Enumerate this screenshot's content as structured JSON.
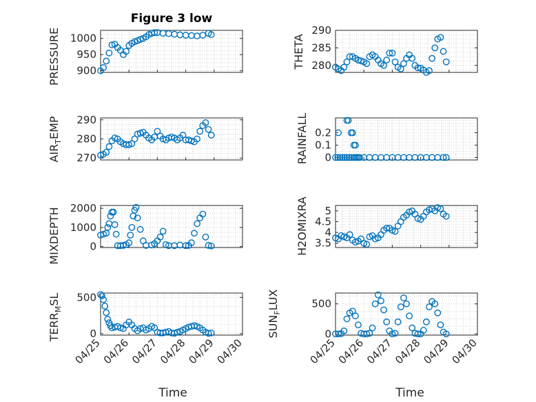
{
  "colors": {
    "marker": "#0072BD",
    "axis": "#262626",
    "grid": "#d0d0d0"
  },
  "chart_data": [
    {
      "type": "scatter",
      "title": "Figure 3 low",
      "ylabel": "PRESSURE",
      "xlabel": "",
      "ylim": [
        895,
        1025
      ],
      "yticks": [
        900,
        950,
        1000
      ],
      "ytick_labels": [
        "900",
        "950",
        "1000"
      ],
      "grid": true,
      "x_range": [
        "04/25",
        "04/29"
      ],
      "x": [
        0,
        0.1,
        0.2,
        0.3,
        0.4,
        0.5,
        0.6,
        0.7,
        0.8,
        0.9,
        1.0,
        1.1,
        1.2,
        1.3,
        1.4,
        1.5,
        1.6,
        1.7,
        1.8,
        1.9,
        2.0,
        2.2,
        2.4,
        2.6,
        2.8,
        3.0,
        3.2,
        3.4,
        3.6,
        3.8,
        3.9
      ],
      "y": [
        900,
        910,
        930,
        955,
        980,
        982,
        972,
        963,
        950,
        960,
        978,
        985,
        990,
        993,
        997,
        1000,
        1005,
        1012,
        1016,
        1018,
        1018,
        1016,
        1015,
        1013,
        1011,
        1010,
        1009,
        1008,
        1010,
        1016,
        1012
      ]
    },
    {
      "type": "scatter",
      "ylabel": "THETA",
      "xlabel": "",
      "ylim": [
        278,
        290
      ],
      "yticks": [
        280,
        285,
        290
      ],
      "ytick_labels": [
        "280",
        "285",
        "290"
      ],
      "grid": true,
      "x": [
        0,
        0.1,
        0.2,
        0.3,
        0.4,
        0.5,
        0.6,
        0.7,
        0.8,
        0.9,
        1.0,
        1.1,
        1.2,
        1.3,
        1.4,
        1.5,
        1.6,
        1.7,
        1.8,
        1.9,
        2.0,
        2.1,
        2.2,
        2.3,
        2.4,
        2.5,
        2.6,
        2.7,
        2.8,
        2.9,
        3.0,
        3.1,
        3.2,
        3.3,
        3.4,
        3.5,
        3.6,
        3.7,
        3.8,
        3.9
      ],
      "y": [
        279.5,
        279,
        278.5,
        279.5,
        281,
        282.5,
        282.5,
        282,
        281.5,
        281.3,
        281,
        280.5,
        282.5,
        283,
        282.5,
        281.5,
        280.5,
        280,
        281.5,
        283.5,
        283.5,
        281,
        279.5,
        279,
        280.5,
        282,
        283,
        282,
        280,
        279.3,
        279.2,
        278.7,
        278,
        278.5,
        282,
        285,
        287.5,
        288,
        284,
        281
      ]
    },
    {
      "type": "scatter",
      "ylabel": "AIR_TEMP",
      "xlabel": "",
      "ylim": [
        269,
        291
      ],
      "yticks": [
        270,
        280,
        290
      ],
      "ytick_labels": [
        "270",
        "280",
        "290"
      ],
      "grid": true,
      "x": [
        0,
        0.1,
        0.2,
        0.3,
        0.4,
        0.5,
        0.6,
        0.7,
        0.8,
        0.9,
        1.0,
        1.1,
        1.2,
        1.3,
        1.4,
        1.5,
        1.6,
        1.7,
        1.8,
        1.9,
        2.0,
        2.1,
        2.2,
        2.3,
        2.4,
        2.5,
        2.6,
        2.7,
        2.8,
        2.9,
        3.0,
        3.1,
        3.2,
        3.3,
        3.4,
        3.5,
        3.6,
        3.7,
        3.8,
        3.9
      ],
      "y": [
        271.5,
        272,
        273,
        276,
        279,
        280.5,
        280,
        278.5,
        277.5,
        277,
        277,
        277.5,
        280,
        282.5,
        283,
        283.5,
        282,
        280.5,
        279.5,
        281,
        284,
        281.5,
        280,
        279.5,
        280.5,
        281,
        280.5,
        279.5,
        280.5,
        282,
        279.5,
        279.5,
        279,
        278.5,
        280,
        284,
        287,
        288.5,
        285,
        282
      ]
    },
    {
      "type": "scatter",
      "ylabel": "RAINFALL",
      "xlabel": "",
      "ylim": [
        -0.02,
        0.32
      ],
      "yticks": [
        0,
        0.1,
        0.2
      ],
      "ytick_labels": [
        "0",
        "0.1",
        "0.2"
      ],
      "grid": true,
      "x": [
        0,
        0.08,
        0.16,
        0.24,
        0.32,
        0.4,
        0.48,
        0.56,
        0.64,
        0.7,
        0.75,
        0.8,
        0.1,
        0.4,
        0.45,
        0.55,
        0.6,
        0.65,
        0.7,
        0.85,
        1.0,
        1.2,
        1.4,
        1.6,
        1.8,
        2.0,
        2.2,
        2.4,
        2.6,
        2.8,
        3.0,
        3.2,
        3.4,
        3.6,
        3.8,
        3.9
      ],
      "y": [
        0,
        0,
        0,
        0,
        0,
        0,
        0,
        0,
        0,
        0,
        0,
        0,
        0.2,
        0.3,
        0.3,
        0.2,
        0.2,
        0.1,
        0.1,
        0,
        0,
        0,
        0,
        0,
        0,
        0,
        0,
        0,
        0,
        0,
        0,
        0,
        0,
        0,
        0,
        0
      ]
    },
    {
      "type": "scatter",
      "ylabel": "MIXDEPTH",
      "xlabel": "",
      "ylim": [
        -50,
        2150
      ],
      "yticks": [
        0,
        1000,
        2000
      ],
      "ytick_labels": [
        "0",
        "1000",
        "2000"
      ],
      "grid": true,
      "x": [
        0,
        0.1,
        0.2,
        0.25,
        0.3,
        0.35,
        0.4,
        0.45,
        0.5,
        0.55,
        0.6,
        0.7,
        0.8,
        0.9,
        1.0,
        1.05,
        1.1,
        1.15,
        1.2,
        1.25,
        1.3,
        1.4,
        1.5,
        1.6,
        1.8,
        1.9,
        2.0,
        2.1,
        2.2,
        2.3,
        2.4,
        2.6,
        2.8,
        3.0,
        3.1,
        3.2,
        3.3,
        3.4,
        3.5,
        3.6,
        3.7,
        3.8,
        3.9
      ],
      "y": [
        600,
        650,
        700,
        1000,
        1200,
        1600,
        1800,
        1800,
        1150,
        650,
        50,
        50,
        60,
        100,
        200,
        600,
        1000,
        1600,
        1900,
        2050,
        1500,
        900,
        300,
        60,
        80,
        150,
        300,
        500,
        800,
        100,
        50,
        50,
        80,
        50,
        60,
        200,
        700,
        1200,
        1500,
        1700,
        500,
        60,
        30
      ]
    },
    {
      "type": "scatter",
      "ylabel": "H2OMIXRA",
      "xlabel": "",
      "ylim": [
        3.3,
        5.25
      ],
      "yticks": [
        3.5,
        4,
        4.5,
        5
      ],
      "ytick_labels": [
        "3.5",
        "4",
        "4.5",
        "5"
      ],
      "grid": true,
      "x": [
        0,
        0.1,
        0.2,
        0.3,
        0.4,
        0.5,
        0.6,
        0.7,
        0.8,
        0.9,
        1.0,
        1.1,
        1.2,
        1.3,
        1.4,
        1.5,
        1.6,
        1.7,
        1.8,
        1.9,
        2.0,
        2.1,
        2.2,
        2.3,
        2.4,
        2.5,
        2.6,
        2.7,
        2.8,
        2.9,
        3.0,
        3.1,
        3.2,
        3.3,
        3.4,
        3.5,
        3.6,
        3.7,
        3.8,
        3.9
      ],
      "y": [
        3.75,
        3.7,
        3.85,
        3.8,
        3.75,
        3.9,
        3.65,
        3.55,
        3.6,
        3.7,
        3.5,
        3.45,
        3.8,
        3.85,
        3.7,
        3.75,
        3.9,
        4.1,
        4.2,
        4.2,
        4.1,
        4.05,
        4.3,
        4.5,
        4.7,
        4.8,
        4.95,
        5.0,
        4.85,
        4.65,
        4.6,
        4.75,
        4.95,
        5.05,
        5.1,
        5.0,
        5.15,
        5.1,
        4.85,
        4.75
      ]
    },
    {
      "type": "scatter",
      "ylabel": "TERR_MSL",
      "xlabel": "Time",
      "ylim": [
        -20,
        560
      ],
      "yticks": [
        0,
        500
      ],
      "ytick_labels": [
        "0",
        "500"
      ],
      "grid": true,
      "xticks": [
        0,
        1,
        2,
        3,
        4,
        5
      ],
      "xtick_labels": [
        "04/25",
        "04/26",
        "04/27",
        "04/28",
        "04/29",
        "04/30"
      ],
      "x": [
        0,
        0.05,
        0.1,
        0.15,
        0.2,
        0.25,
        0.3,
        0.35,
        0.4,
        0.5,
        0.6,
        0.7,
        0.8,
        0.9,
        1.0,
        1.1,
        1.2,
        1.3,
        1.4,
        1.5,
        1.6,
        1.7,
        1.8,
        1.9,
        2.0,
        2.1,
        2.2,
        2.3,
        2.4,
        2.5,
        2.6,
        2.7,
        2.8,
        2.9,
        3.0,
        3.1,
        3.2,
        3.3,
        3.4,
        3.5,
        3.6,
        3.7,
        3.8,
        3.9
      ],
      "y": [
        540,
        520,
        470,
        380,
        290,
        200,
        150,
        110,
        80,
        90,
        100,
        80,
        70,
        120,
        160,
        120,
        70,
        40,
        70,
        80,
        50,
        70,
        100,
        80,
        20,
        10,
        10,
        20,
        30,
        10,
        5,
        20,
        30,
        50,
        70,
        90,
        100,
        110,
        100,
        80,
        50,
        20,
        5,
        10
      ]
    },
    {
      "type": "scatter",
      "ylabel": "SUN_FLUX",
      "xlabel": "Time",
      "ylim": [
        -20,
        680
      ],
      "yticks": [
        0,
        500
      ],
      "ytick_labels": [
        "0",
        "500"
      ],
      "grid": true,
      "xticks": [
        0,
        1,
        2,
        3,
        4,
        5
      ],
      "xtick_labels": [
        "04/25",
        "04/26",
        "04/27",
        "04/28",
        "04/29",
        "04/30"
      ],
      "x": [
        0,
        0.1,
        0.2,
        0.3,
        0.4,
        0.5,
        0.6,
        0.7,
        0.8,
        0.9,
        1.0,
        1.1,
        1.2,
        1.3,
        1.4,
        1.5,
        1.6,
        1.7,
        1.8,
        1.9,
        2.0,
        2.1,
        2.2,
        2.3,
        2.4,
        2.5,
        2.6,
        2.7,
        2.8,
        2.9,
        3.0,
        3.1,
        3.2,
        3.3,
        3.4,
        3.5,
        3.6,
        3.7,
        3.8,
        3.9
      ],
      "y": [
        0,
        0,
        5,
        50,
        250,
        350,
        380,
        300,
        150,
        10,
        0,
        0,
        10,
        100,
        500,
        650,
        550,
        400,
        200,
        50,
        0,
        10,
        200,
        450,
        600,
        500,
        300,
        100,
        10,
        0,
        0,
        60,
        200,
        450,
        540,
        500,
        350,
        150,
        30,
        0
      ]
    }
  ]
}
